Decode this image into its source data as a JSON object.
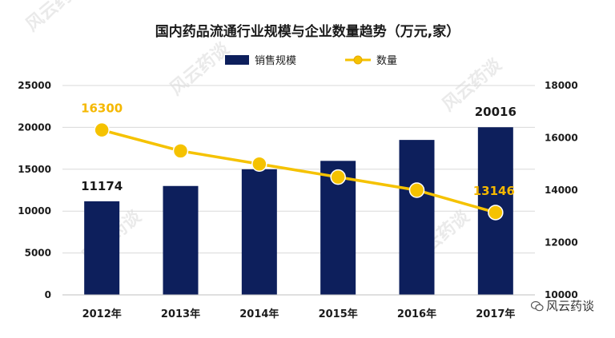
{
  "chart_data": {
    "type": "bar+line",
    "title": "国内药品流通行业规模与企业数量趋势（万元,家）",
    "categories": [
      "2012年",
      "2013年",
      "2014年",
      "2015年",
      "2016年",
      "2017年"
    ],
    "series": [
      {
        "name": "销售规模",
        "type": "bar",
        "axis": "left",
        "color": "#0d1f5c",
        "values": [
          11174,
          13000,
          15000,
          16000,
          18500,
          20016
        ],
        "labels": [
          "11174",
          "",
          "",
          "",
          "",
          "20016"
        ]
      },
      {
        "name": "数量",
        "type": "line",
        "axis": "right",
        "color": "#f5c200",
        "values": [
          16300,
          15500,
          15000,
          14500,
          14000,
          13146
        ],
        "labels": [
          "16300",
          "",
          "",
          "",
          "",
          "13146"
        ]
      }
    ],
    "y_left": {
      "range": [
        0,
        25000
      ],
      "ticks": [
        "0",
        "5000",
        "10000",
        "15000",
        "20000",
        "25000"
      ]
    },
    "y_right": {
      "range": [
        10000,
        18000
      ],
      "ticks": [
        "10000",
        "12000",
        "14000",
        "16000",
        "18000"
      ]
    },
    "grid": "horizontal",
    "legend": "top-center"
  },
  "watermark": {
    "text": "风云药谈"
  },
  "brand": {
    "text": "风云药谈",
    "icon": "wechat-icon"
  }
}
